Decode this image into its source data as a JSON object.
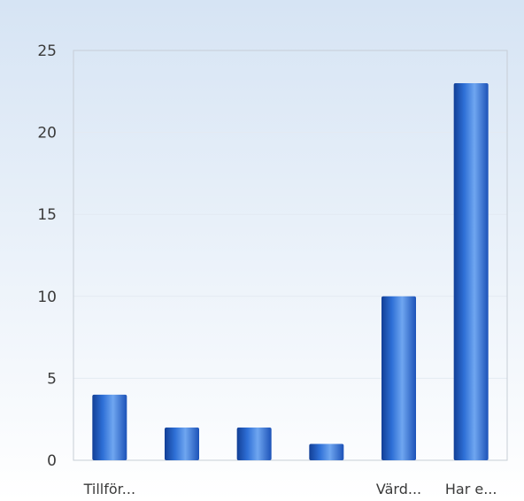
{
  "chart_data": {
    "type": "bar",
    "categories": [
      "Tillför...",
      "",
      "",
      "",
      "Värd...",
      "Har e..."
    ],
    "values": [
      4,
      2,
      2,
      1,
      10,
      23
    ],
    "ylim": [
      0,
      25
    ],
    "yticks": [
      0,
      5,
      10,
      15,
      20,
      25
    ],
    "grid": true,
    "legend": "none",
    "colors": {
      "bar_light": "#6fa6f0",
      "bar_mid": "#2e6fd6",
      "bar_dark": "#123f96",
      "background_top": "#d6e4f4",
      "background_bottom": "#ffffff",
      "gridline": "#e3eaf2",
      "axis": "#c7ced6"
    }
  }
}
